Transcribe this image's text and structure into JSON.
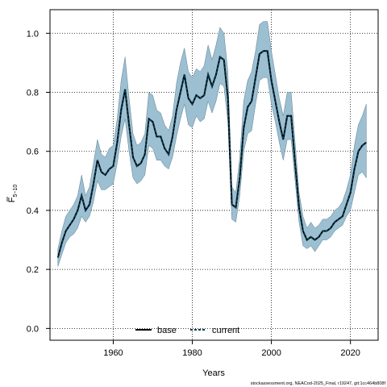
{
  "chart_data": {
    "type": "line",
    "xlabel": "Years",
    "ylabel_main": "F",
    "ylabel_sub": "5−10",
    "xlim": [
      1944,
      2027
    ],
    "ylim": [
      -0.04,
      1.08
    ],
    "xticks": [
      1960,
      1980,
      2000,
      2020
    ],
    "yticks": [
      0.0,
      0.2,
      0.4,
      0.6,
      0.8,
      1.0
    ],
    "ytick_labels": [
      "0.0",
      "0.2",
      "0.4",
      "0.6",
      "0.8",
      "1.0"
    ],
    "grid": true,
    "legend_position": "bottom-center",
    "x": [
      1946,
      1947,
      1948,
      1949,
      1950,
      1951,
      1952,
      1953,
      1954,
      1955,
      1956,
      1957,
      1958,
      1959,
      1960,
      1961,
      1962,
      1963,
      1964,
      1965,
      1966,
      1967,
      1968,
      1969,
      1970,
      1971,
      1972,
      1973,
      1974,
      1975,
      1976,
      1977,
      1978,
      1979,
      1980,
      1981,
      1982,
      1983,
      1984,
      1985,
      1986,
      1987,
      1988,
      1989,
      1990,
      1991,
      1992,
      1993,
      1994,
      1995,
      1996,
      1997,
      1998,
      1999,
      2000,
      2001,
      2002,
      2003,
      2004,
      2005,
      2006,
      2007,
      2008,
      2009,
      2010,
      2011,
      2012,
      2013,
      2014,
      2015,
      2016,
      2017,
      2018,
      2019,
      2020,
      2021,
      2022,
      2023,
      2024
    ],
    "series": [
      {
        "name": "base",
        "color": "#000000",
        "values": [
          0.24,
          0.29,
          0.33,
          0.35,
          0.37,
          0.4,
          0.45,
          0.4,
          0.42,
          0.49,
          0.57,
          0.53,
          0.52,
          0.54,
          0.55,
          0.63,
          0.74,
          0.81,
          0.69,
          0.58,
          0.55,
          0.56,
          0.59,
          0.71,
          0.7,
          0.65,
          0.65,
          0.61,
          0.59,
          0.65,
          0.74,
          0.8,
          0.86,
          0.78,
          0.76,
          0.79,
          0.78,
          0.79,
          0.86,
          0.82,
          0.86,
          0.92,
          0.91,
          0.78,
          0.42,
          0.41,
          0.51,
          0.68,
          0.75,
          0.77,
          0.85,
          0.93,
          0.94,
          0.94,
          0.84,
          0.77,
          0.7,
          0.64,
          0.72,
          0.72,
          0.56,
          0.41,
          0.33,
          0.3,
          0.31,
          0.3,
          0.31,
          0.33,
          0.33,
          0.34,
          0.36,
          0.37,
          0.38,
          0.42,
          0.46,
          0.54,
          0.6,
          0.62,
          0.63
        ]
      },
      {
        "name": "current",
        "color": "#0b3a4e",
        "values": [
          0.24,
          0.29,
          0.33,
          0.35,
          0.37,
          0.4,
          0.45,
          0.4,
          0.42,
          0.49,
          0.57,
          0.53,
          0.52,
          0.54,
          0.55,
          0.63,
          0.74,
          0.81,
          0.69,
          0.58,
          0.55,
          0.56,
          0.59,
          0.71,
          0.7,
          0.65,
          0.65,
          0.61,
          0.59,
          0.65,
          0.74,
          0.8,
          0.86,
          0.78,
          0.76,
          0.79,
          0.78,
          0.79,
          0.86,
          0.82,
          0.86,
          0.92,
          0.91,
          0.78,
          0.42,
          0.41,
          0.51,
          0.68,
          0.75,
          0.77,
          0.85,
          0.93,
          0.94,
          0.94,
          0.84,
          0.77,
          0.7,
          0.64,
          0.72,
          0.72,
          0.56,
          0.41,
          0.33,
          0.3,
          0.31,
          0.3,
          0.31,
          0.33,
          0.33,
          0.34,
          0.36,
          0.37,
          0.38,
          0.42,
          0.46,
          0.54,
          0.6,
          0.62,
          0.63
        ]
      }
    ],
    "band": {
      "color": "#9cbfd1",
      "lower": [
        0.21,
        0.25,
        0.29,
        0.31,
        0.32,
        0.34,
        0.38,
        0.36,
        0.38,
        0.43,
        0.5,
        0.47,
        0.47,
        0.48,
        0.49,
        0.56,
        0.65,
        0.71,
        0.6,
        0.51,
        0.49,
        0.5,
        0.52,
        0.62,
        0.61,
        0.57,
        0.57,
        0.55,
        0.54,
        0.58,
        0.65,
        0.71,
        0.76,
        0.69,
        0.68,
        0.72,
        0.7,
        0.71,
        0.77,
        0.73,
        0.77,
        0.83,
        0.82,
        0.7,
        0.37,
        0.36,
        0.45,
        0.6,
        0.66,
        0.67,
        0.76,
        0.84,
        0.85,
        0.85,
        0.76,
        0.7,
        0.63,
        0.57,
        0.64,
        0.64,
        0.5,
        0.36,
        0.28,
        0.27,
        0.28,
        0.26,
        0.28,
        0.3,
        0.3,
        0.31,
        0.33,
        0.34,
        0.35,
        0.38,
        0.4,
        0.46,
        0.52,
        0.53,
        0.51
      ],
      "upper": [
        0.27,
        0.33,
        0.38,
        0.4,
        0.42,
        0.45,
        0.52,
        0.45,
        0.48,
        0.56,
        0.64,
        0.59,
        0.58,
        0.61,
        0.62,
        0.71,
        0.84,
        0.92,
        0.78,
        0.66,
        0.62,
        0.63,
        0.66,
        0.8,
        0.79,
        0.74,
        0.73,
        0.69,
        0.67,
        0.72,
        0.83,
        0.9,
        0.95,
        0.87,
        0.85,
        0.88,
        0.87,
        0.89,
        0.96,
        0.91,
        0.96,
        1.02,
        1.0,
        0.87,
        0.48,
        0.46,
        0.58,
        0.77,
        0.84,
        0.87,
        0.94,
        1.03,
        1.04,
        1.04,
        0.94,
        0.86,
        0.78,
        0.72,
        0.8,
        0.8,
        0.63,
        0.46,
        0.38,
        0.34,
        0.36,
        0.34,
        0.35,
        0.37,
        0.37,
        0.38,
        0.4,
        0.41,
        0.43,
        0.47,
        0.52,
        0.62,
        0.69,
        0.72,
        0.76
      ]
    },
    "footer": "stockassessment.org, NEACod-2025_Final, r19247, git:1cc464b808f"
  }
}
